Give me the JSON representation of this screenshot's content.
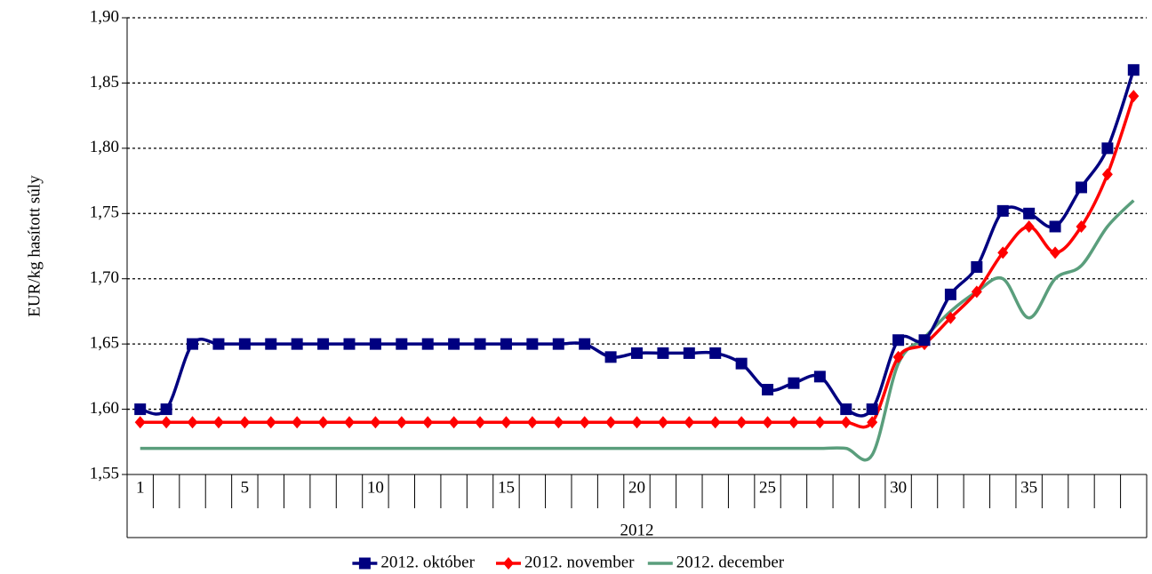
{
  "chart_data": {
    "type": "line",
    "y_label": "EUR/kg hasított súly",
    "x_group_label": "2012",
    "categories": [
      "1",
      null,
      null,
      null,
      "5",
      null,
      null,
      null,
      null,
      "10",
      null,
      null,
      null,
      null,
      "15",
      null,
      null,
      null,
      null,
      "20",
      null,
      null,
      null,
      null,
      "25",
      null,
      null,
      null,
      null,
      "30",
      null,
      null,
      null,
      null,
      "35",
      null,
      null,
      null,
      null
    ],
    "series": [
      {
        "name": "2012. október",
        "color": "#000080",
        "marker": "square",
        "values": [
          1.6,
          1.6,
          1.65,
          1.65,
          1.65,
          1.65,
          1.65,
          1.65,
          1.65,
          1.65,
          1.65,
          1.65,
          1.65,
          1.65,
          1.65,
          1.65,
          1.65,
          1.65,
          1.64,
          1.643,
          1.643,
          1.643,
          1.643,
          1.635,
          1.615,
          1.62,
          1.625,
          1.6,
          1.6,
          1.653,
          1.653,
          1.688,
          1.709,
          1.752,
          1.75,
          1.74,
          1.77,
          1.8,
          1.86
        ]
      },
      {
        "name": "2012. november",
        "color": "#ff0000",
        "marker": "diamond",
        "values": [
          1.59,
          1.59,
          1.59,
          1.59,
          1.59,
          1.59,
          1.59,
          1.59,
          1.59,
          1.59,
          1.59,
          1.59,
          1.59,
          1.59,
          1.59,
          1.59,
          1.59,
          1.59,
          1.59,
          1.59,
          1.59,
          1.59,
          1.59,
          1.59,
          1.59,
          1.59,
          1.59,
          1.59,
          1.59,
          1.64,
          1.65,
          1.67,
          1.69,
          1.72,
          1.74,
          1.72,
          1.74,
          1.78,
          1.84
        ]
      },
      {
        "name": "2012. december",
        "color": "#5a9e7c",
        "marker": "none",
        "values": [
          1.57,
          1.57,
          1.57,
          1.57,
          1.57,
          1.57,
          1.57,
          1.57,
          1.57,
          1.57,
          1.57,
          1.57,
          1.57,
          1.57,
          1.57,
          1.57,
          1.57,
          1.57,
          1.57,
          1.57,
          1.57,
          1.57,
          1.57,
          1.57,
          1.57,
          1.57,
          1.57,
          1.57,
          1.565,
          1.635,
          1.655,
          1.675,
          1.69,
          1.7,
          1.67,
          1.7,
          1.71,
          1.74,
          1.76
        ]
      }
    ],
    "ylim": [
      1.55,
      1.9
    ],
    "yticks": [
      {
        "value": 1.55,
        "label": "1,55"
      },
      {
        "value": 1.6,
        "label": "1,60"
      },
      {
        "value": 1.65,
        "label": "1,65"
      },
      {
        "value": 1.7,
        "label": "1,70"
      },
      {
        "value": 1.75,
        "label": "1,75"
      },
      {
        "value": 1.8,
        "label": "1,80"
      },
      {
        "value": 1.85,
        "label": "1,85"
      },
      {
        "value": 1.9,
        "label": "1,90"
      }
    ],
    "grid": true,
    "smooth": true,
    "legend": "bottom"
  }
}
